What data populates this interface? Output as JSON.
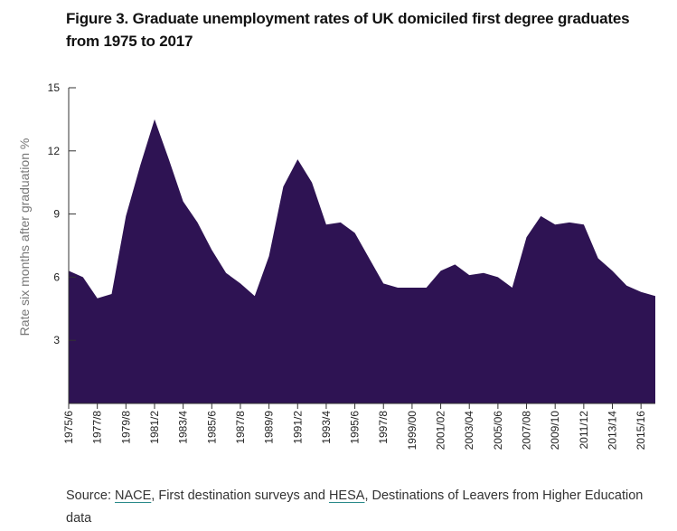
{
  "title": "Figure 3. Graduate unemployment rates of UK domiciled first degree graduates from 1975 to 2017",
  "source": {
    "prefix": "Source: ",
    "link1": "NACE",
    "middle": ", First destination surveys and ",
    "link2": "HESA",
    "suffix": ", Destinations of Leavers from Higher Education data"
  },
  "colors": {
    "area": "#2e1353",
    "axis": "#333333"
  },
  "chart_data": {
    "type": "area",
    "ylabel": "Rate six months after graduation %",
    "ylim": [
      0,
      15
    ],
    "yticks": [
      3,
      6,
      9,
      12,
      15
    ],
    "grid": false,
    "x_tick_labels": [
      "1975/6",
      "1977/8",
      "1979/8",
      "1981/2",
      "1983/4",
      "1985/6",
      "1987/8",
      "1989/9",
      "1991/2",
      "1993/4",
      "1995/6",
      "1997/8",
      "1999/00",
      "2001/02",
      "2003/04",
      "2005/06",
      "2007/08",
      "2009/10",
      "2011/12",
      "2013/14",
      "2015/16"
    ],
    "x": [
      "1975/6",
      "1976/7",
      "1977/8",
      "1978/9",
      "1979/80",
      "1980/1",
      "1981/2",
      "1982/3",
      "1983/4",
      "1984/5",
      "1985/6",
      "1986/7",
      "1987/8",
      "1988/9",
      "1989/90",
      "1990/1",
      "1991/2",
      "1992/3",
      "1993/4",
      "1994/5",
      "1995/6",
      "1996/7",
      "1997/8",
      "1998/9",
      "1999/00",
      "2000/01",
      "2001/02",
      "2002/03",
      "2003/04",
      "2004/05",
      "2005/06",
      "2006/07",
      "2007/08",
      "2008/09",
      "2009/10",
      "2010/11",
      "2011/12",
      "2012/13",
      "2013/14",
      "2014/15",
      "2015/16",
      "2016/17"
    ],
    "values": [
      6.3,
      6.0,
      5.0,
      5.2,
      8.9,
      11.3,
      13.5,
      11.6,
      9.6,
      8.6,
      7.3,
      6.2,
      5.7,
      5.1,
      7.0,
      10.3,
      11.6,
      10.5,
      8.5,
      8.6,
      8.1,
      6.9,
      5.7,
      5.5,
      5.5,
      5.5,
      6.3,
      6.6,
      6.1,
      6.2,
      6.0,
      5.5,
      7.9,
      8.9,
      8.5,
      8.6,
      8.5,
      6.9,
      6.3,
      5.6,
      5.3,
      5.1
    ]
  }
}
